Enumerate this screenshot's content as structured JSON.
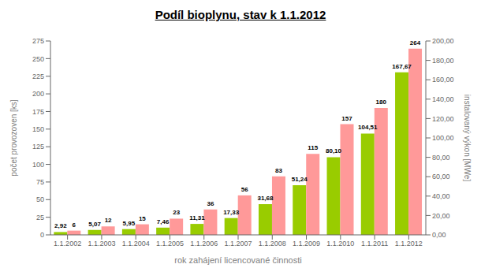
{
  "chart_data": {
    "type": "bar",
    "title": "Podíl bioplynu, stav k 1.1.2012",
    "xlabel": "rok zahájení licencované činnosti",
    "ylabel": "počet provozoven [ks]",
    "y2label": "instalovaný výkon [MWe]",
    "categories": [
      "1.1.2002",
      "1.1.2003",
      "1.1.2004",
      "1.1.2005",
      "1.1.2006",
      "1.1.2007",
      "1.1.2008",
      "1.1.2009",
      "1.1.2010",
      "1.1.2011",
      "1.1.2012"
    ],
    "series": [
      {
        "color": "#99cc00",
        "axis": "y2",
        "values": [
          2.92,
          5.07,
          5.95,
          7.46,
          11.31,
          17.33,
          31.68,
          51.24,
          80.1,
          104.51,
          167.67
        ],
        "value_labels": [
          "2,92",
          "5,07",
          "5,95",
          "7,46",
          "11,31",
          "17,33",
          "31,68",
          "51,24",
          "80,10",
          "104,51",
          "167,67"
        ]
      },
      {
        "color": "#ff9999",
        "values": [
          6,
          12,
          15,
          23,
          36,
          56,
          83,
          115,
          157,
          180,
          264
        ]
      }
    ],
    "ylim": [
      0,
      275
    ],
    "yticks": [
      0,
      25,
      50,
      75,
      100,
      125,
      150,
      175,
      200,
      225,
      250,
      275
    ],
    "y2lim": [
      0,
      200
    ],
    "y2ticks": [
      {
        "value": 0,
        "label": "0,00"
      },
      {
        "value": 20,
        "label": "20,00"
      },
      {
        "value": 40,
        "label": "40,00"
      },
      {
        "value": 60,
        "label": "60,00"
      },
      {
        "value": 80,
        "label": "80,00"
      },
      {
        "value": 100,
        "label": "100,00"
      },
      {
        "value": 120,
        "label": "120,00"
      },
      {
        "value": 140,
        "label": "140,00"
      },
      {
        "value": 160,
        "label": "160,00"
      },
      {
        "value": 180,
        "label": "180,00"
      },
      {
        "value": 200,
        "label": "200,00"
      }
    ],
    "grid": false,
    "data_labels": true
  }
}
